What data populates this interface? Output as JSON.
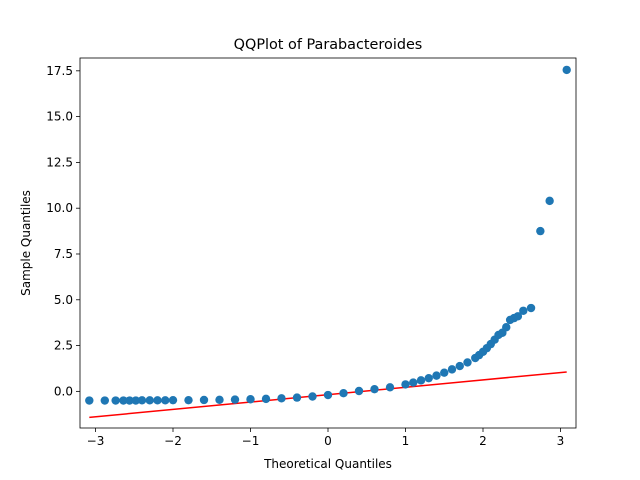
{
  "chart_data": {
    "type": "scatter",
    "title": "QQPlot of Parabacteroides",
    "xlabel": "Theoretical Quantiles",
    "ylabel": "Sample Quantiles",
    "xlim": [
      -3.2,
      3.2
    ],
    "ylim": [
      -2.0,
      18.2
    ],
    "x_ticks": [
      -3,
      -2,
      -1,
      0,
      1,
      2,
      3
    ],
    "x_tick_labels": [
      "−3",
      "−2",
      "−1",
      "0",
      "1",
      "2",
      "3"
    ],
    "y_ticks": [
      0.0,
      2.5,
      5.0,
      7.5,
      10.0,
      12.5,
      15.0,
      17.5
    ],
    "y_tick_labels": [
      "0.0",
      "2.5",
      "5.0",
      "7.5",
      "10.0",
      "12.5",
      "15.0",
      "17.5"
    ],
    "grid": false,
    "series": [
      {
        "kind": "points",
        "color": "#1f77b4",
        "x": [
          -3.08,
          -2.88,
          -2.74,
          -2.64,
          -2.56,
          -2.48,
          -2.4,
          -2.3,
          -2.2,
          -2.1,
          -2.0,
          -1.8,
          -1.6,
          -1.4,
          -1.2,
          -1.0,
          -0.8,
          -0.6,
          -0.4,
          -0.2,
          0.0,
          0.2,
          0.4,
          0.6,
          0.8,
          1.0,
          1.1,
          1.2,
          1.3,
          1.4,
          1.5,
          1.6,
          1.7,
          1.8,
          1.9,
          1.95,
          2.0,
          2.05,
          2.1,
          2.15,
          2.2,
          2.25,
          2.3,
          2.35,
          2.4,
          2.45,
          2.52,
          2.62,
          2.74,
          2.86,
          3.08
        ],
        "y": [
          -0.5,
          -0.5,
          -0.5,
          -0.5,
          -0.5,
          -0.5,
          -0.49,
          -0.49,
          -0.49,
          -0.49,
          -0.48,
          -0.48,
          -0.47,
          -0.46,
          -0.45,
          -0.43,
          -0.41,
          -0.38,
          -0.34,
          -0.28,
          -0.2,
          -0.1,
          0.02,
          0.12,
          0.22,
          0.38,
          0.48,
          0.6,
          0.72,
          0.86,
          1.02,
          1.2,
          1.38,
          1.58,
          1.82,
          1.98,
          2.16,
          2.36,
          2.58,
          2.82,
          3.08,
          3.2,
          3.5,
          3.9,
          4.0,
          4.1,
          4.4,
          4.55,
          8.75,
          10.4,
          17.55
        ]
      },
      {
        "kind": "line",
        "color": "#ff0000",
        "x": [
          -3.08,
          3.08
        ],
        "y": [
          -1.42,
          1.06
        ]
      }
    ]
  }
}
